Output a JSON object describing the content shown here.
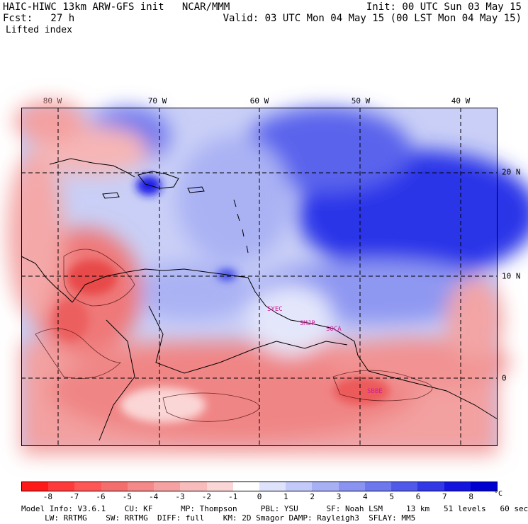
{
  "header": {
    "title_left": "HAIC-HIWC 13km ARW-GFS init   NCAR/MMM",
    "fcst": "Fcst:   27 h",
    "field": "Lifted index",
    "init": "Init: 00 UTC Sun 03 May 15",
    "valid": "Valid: 03 UTC Mon 04 May 15 (00 LST Mon 04 May 15)"
  },
  "map": {
    "lon_labels": [
      {
        "text": "80 W",
        "lon": -80
      },
      {
        "text": "70 W",
        "lon": -70
      },
      {
        "text": "60 W",
        "lon": -60
      },
      {
        "text": "50 W",
        "lon": -50
      },
      {
        "text": "40 W",
        "lon": -40
      }
    ],
    "lat_labels": [
      {
        "text": "20 N",
        "lat": 20
      },
      {
        "text": "10 N",
        "lat": 10
      },
      {
        "text": "0",
        "lat": 0
      }
    ],
    "stations": [
      "SYEC",
      "SMJP",
      "SOCA",
      "SBBE"
    ],
    "colors": {
      "strong_positive": "#1a1ae6",
      "positive": "#8c96f0",
      "weak_positive": "#d6dcfa",
      "weak_negative": "#f8c4c4",
      "negative": "#f07070",
      "coast": "#000000"
    }
  },
  "colorbar": {
    "labels": [
      "-8",
      "-7",
      "-6",
      "-5",
      "-4",
      "-3",
      "-2",
      "-1",
      "0",
      "1",
      "2",
      "3",
      "4",
      "5",
      "6",
      "7",
      "8"
    ],
    "unit": "°C",
    "colors": [
      "#ff1a1a",
      "#ff3a3a",
      "#ff5656",
      "#f56e6e",
      "#f58888",
      "#f7a2a2",
      "#f9bcbc",
      "#fbd6d6",
      "#ffffff",
      "#dfe2fb",
      "#c3c9f8",
      "#a8b0f5",
      "#8a93f1",
      "#6e78ee",
      "#505aea",
      "#3238e5",
      "#1414df",
      "#0000d0"
    ]
  },
  "footer": {
    "line1": "Model Info: V3.6.1    CU: KF      MP: Thompson     PBL: YSU      SF: Noah LSM     13 km   51 levels   60 sec",
    "line2": "     LW: RRTMG    SW: RRTMG  DIFF: full    KM: 2D Smagor DAMP: Rayleigh3  SFLAY: MM5"
  }
}
